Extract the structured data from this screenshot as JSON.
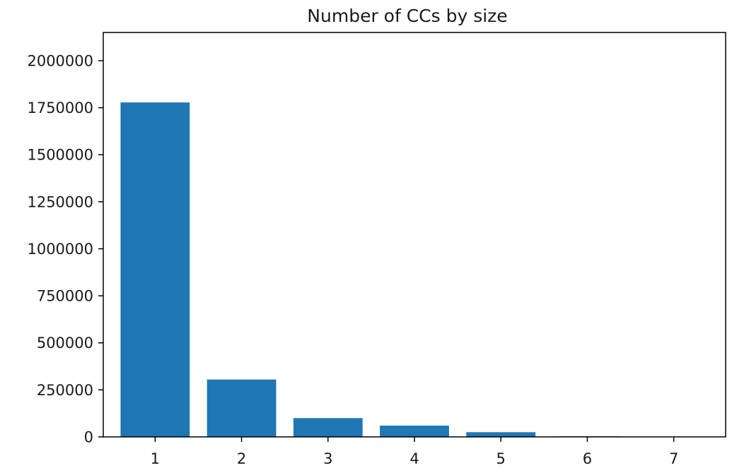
{
  "chart_data": {
    "type": "bar",
    "title": "Number of CCs by size",
    "xlabel": "",
    "ylabel": "",
    "categories": [
      "1",
      "2",
      "3",
      "4",
      "5",
      "6",
      "7"
    ],
    "x": [
      1,
      2,
      3,
      4,
      5,
      6,
      7
    ],
    "values": [
      1778000,
      305000,
      100000,
      60000,
      25000,
      3000,
      1000
    ],
    "yticks": [
      0,
      250000,
      500000,
      750000,
      1000000,
      1250000,
      1500000,
      1750000,
      2000000
    ],
    "ytick_labels": [
      "0",
      "250000",
      "500000",
      "750000",
      "1000000",
      "1250000",
      "1500000",
      "1750000",
      "2000000"
    ],
    "ylim": [
      0,
      2150000
    ],
    "xlim": [
      0.4,
      7.6
    ],
    "bar_color": "#1f77b4",
    "grid": false,
    "legend": "none"
  }
}
